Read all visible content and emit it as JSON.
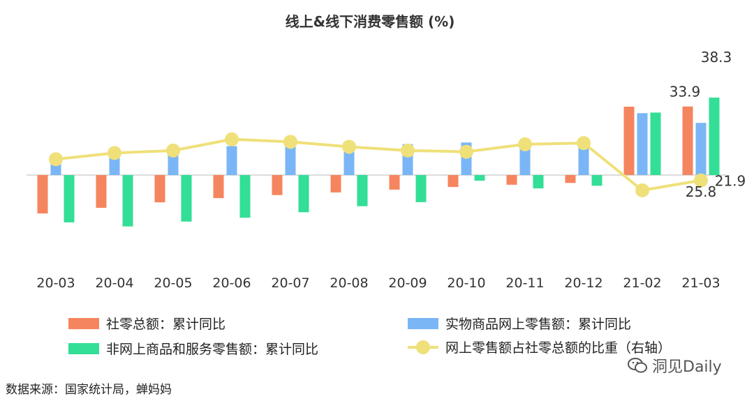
{
  "chart_data": {
    "title": "线上&线下消费零售额 (%)",
    "type": "bar+line",
    "categories": [
      "20-03",
      "20-04",
      "20-05",
      "20-06",
      "20-07",
      "20-08",
      "20-09",
      "20-10",
      "20-11",
      "20-12",
      "21-02",
      "21-03"
    ],
    "series": [
      {
        "name": "社零总额：累计同比",
        "type": "bar",
        "color": "#f5855e",
        "values": [
          -19.0,
          -16.2,
          -13.5,
          -11.4,
          -9.9,
          -8.6,
          -7.2,
          -5.9,
          -4.8,
          -3.9,
          33.8,
          33.9
        ]
      },
      {
        "name": "实物商品网上零售额：累计同比",
        "type": "bar",
        "color": "#7ab6f6",
        "values": [
          5.9,
          8.6,
          11.5,
          14.3,
          15.7,
          15.8,
          15.3,
          16.1,
          15.7,
          14.8,
          30.6,
          25.8
        ]
      },
      {
        "name": "非网上商品和服务零售额：累计同比",
        "type": "bar",
        "color": "#33de97",
        "values": [
          -23.4,
          -25.4,
          -23.0,
          -21.1,
          -18.4,
          -15.4,
          -13.4,
          -2.8,
          -6.6,
          -5.3,
          30.9,
          38.3
        ]
      },
      {
        "name": "网上零售额占社零总额的比重（右轴）",
        "type": "line",
        "axis": "right",
        "color": "#efe07a",
        "values": [
          23.6,
          24.1,
          24.3,
          25.2,
          25.0,
          24.6,
          24.3,
          24.2,
          24.8,
          24.9,
          21.1,
          21.9
        ]
      }
    ],
    "data_labels": [
      "33.9",
      "38.3",
      "25.8",
      "21.9"
    ],
    "left_axis_range": [
      -40,
      60
    ],
    "right_axis_range": [
      5,
      35
    ],
    "grid": false,
    "legend_position": "bottom"
  },
  "source_text": "数据来源：国家统计局，蝉妈妈",
  "brand_text": "洞见Daily"
}
